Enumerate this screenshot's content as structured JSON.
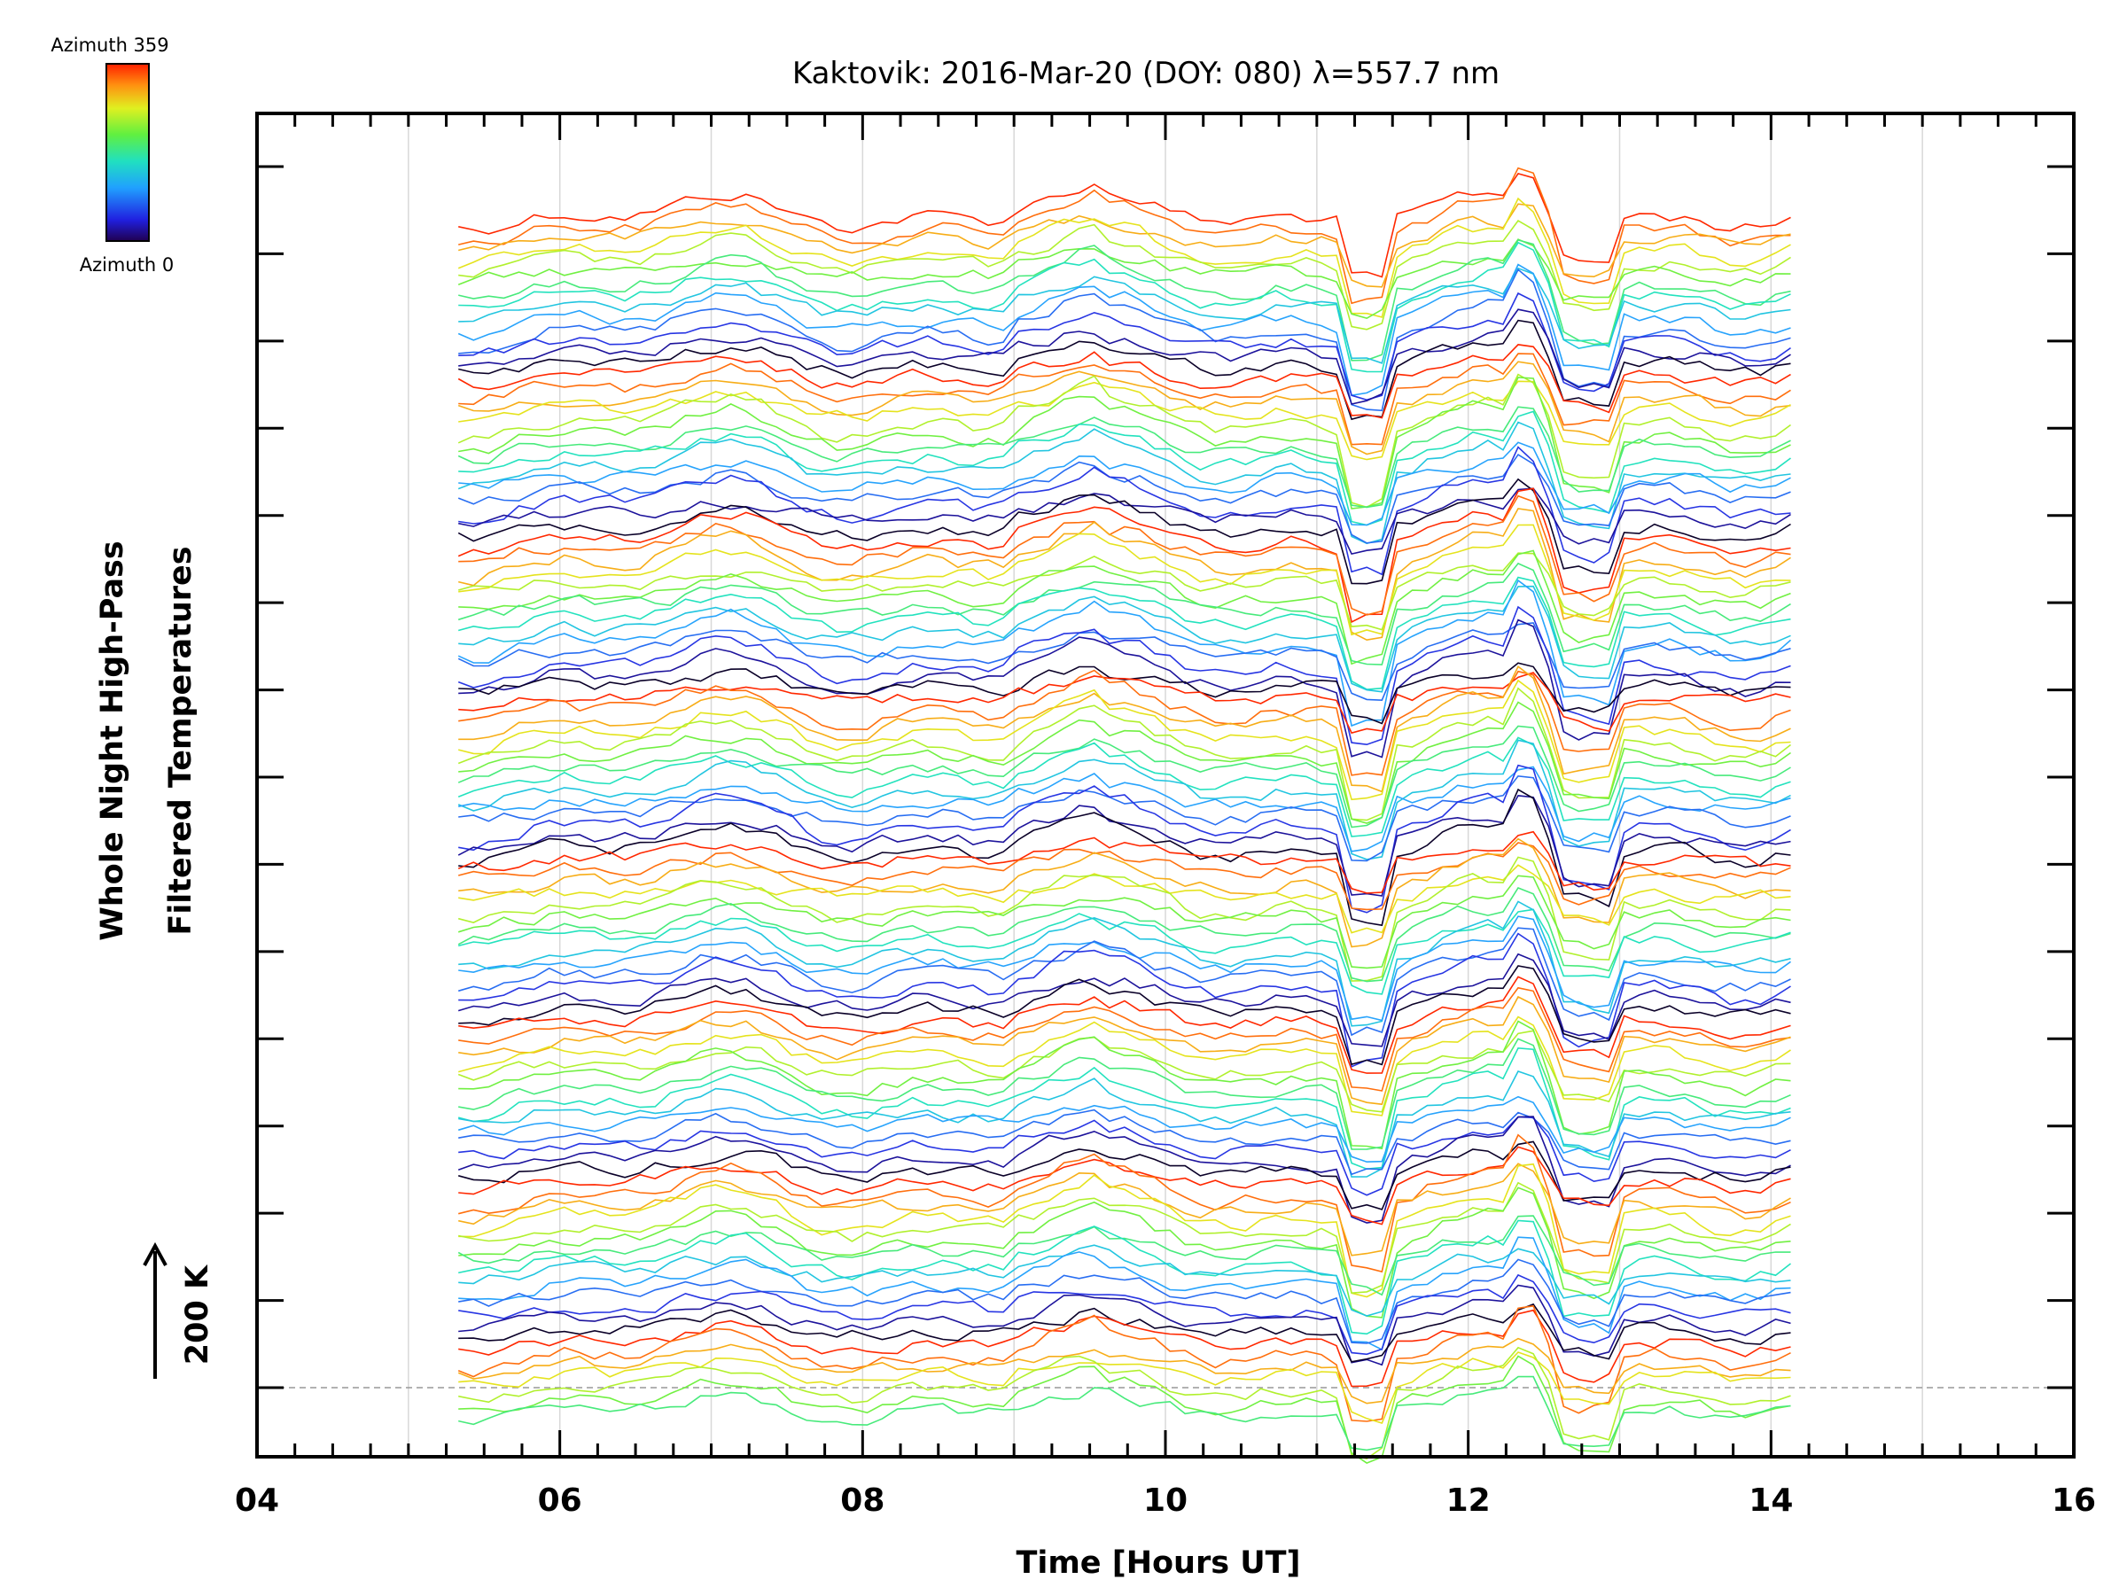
{
  "chart_data": {
    "type": "line",
    "title": "Kaktovik: 2016-Mar-20 (DOY: 080) λ=557.7 nm",
    "xlabel": "Time [Hours UT]",
    "ylabel_line1": "Whole Night High-Pass",
    "ylabel_line2": "Filtered Temperatures",
    "xlim": [
      4,
      16
    ],
    "x_major_ticks": [
      4,
      6,
      8,
      10,
      12,
      14,
      16
    ],
    "x_tick_labels": [
      "04",
      "06",
      "08",
      "10",
      "12",
      "14",
      "16"
    ],
    "x_minor_step": 0.25,
    "x_gridlines": [
      5,
      6,
      7,
      8,
      9,
      10,
      11,
      12,
      13,
      14,
      15
    ],
    "grid": true,
    "data_time_range": [
      5.33,
      14.2
    ],
    "sample_interval_hours": 0.1,
    "series_count": 105,
    "series_blocks": 8,
    "scale_bar_label": "200 K",
    "colorbar": {
      "top_label": "Azimuth 359",
      "bottom_label": "Azimuth 0",
      "range": [
        0,
        359
      ],
      "colormap": "rainbow"
    }
  },
  "colors": {
    "axis": "#000000",
    "grid": "#d8d8d8",
    "baseline": "#999999",
    "background": "#ffffff"
  }
}
